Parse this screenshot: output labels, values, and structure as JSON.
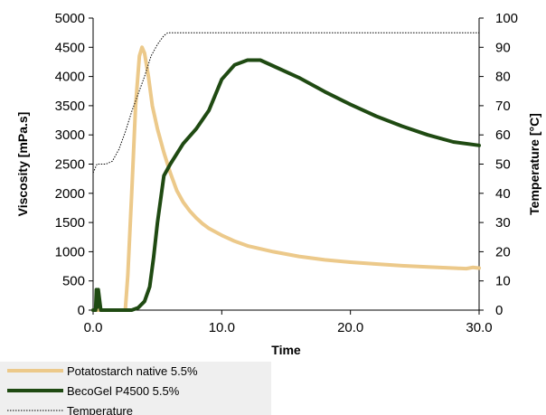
{
  "chart_data": {
    "type": "line",
    "title": "",
    "xlabel": "Time",
    "ylabel_left": "Viscosity [mPa.s]",
    "ylabel_right": "Temperature [°C]",
    "xlim": [
      0,
      30
    ],
    "ylim_left": [
      0,
      5000
    ],
    "ylim_right": [
      0,
      100
    ],
    "x_ticks": [
      "0.0",
      "10.0",
      "20.0",
      "30.0"
    ],
    "y_left_ticks": [
      "0",
      "500",
      "1000",
      "1500",
      "2000",
      "2500",
      "3000",
      "3500",
      "4000",
      "4500",
      "5000"
    ],
    "y_right_ticks": [
      "0",
      "10",
      "20",
      "30",
      "40",
      "50",
      "60",
      "70",
      "80",
      "90",
      "100"
    ],
    "grid": false,
    "legend_position": "bottom-left",
    "series": [
      {
        "name": "Potatostarch native  5.5%",
        "axis": "left",
        "color": "#ecc98a",
        "style": "solid",
        "x": [
          0,
          2.5,
          2.7,
          3.0,
          3.3,
          3.6,
          3.8,
          4.0,
          4.3,
          4.6,
          5.0,
          5.5,
          6.0,
          6.5,
          7.0,
          7.5,
          8.0,
          8.5,
          9.0,
          10.0,
          11.0,
          12.0,
          13.0,
          14.0,
          16.0,
          18.0,
          20.0,
          22.0,
          24.0,
          26.0,
          28.0,
          29.0,
          29.5,
          30.0
        ],
        "y": [
          0,
          0,
          600,
          2000,
          3500,
          4350,
          4500,
          4400,
          4000,
          3500,
          3100,
          2700,
          2350,
          2050,
          1850,
          1700,
          1580,
          1480,
          1400,
          1280,
          1180,
          1100,
          1050,
          1000,
          920,
          860,
          820,
          790,
          760,
          740,
          720,
          710,
          730,
          720
        ]
      },
      {
        "name": "BecoGel P4500 5.5%",
        "axis": "left",
        "color": "#1f4a12",
        "style": "solid",
        "x": [
          0,
          0.2,
          0.25,
          0.3,
          0.4,
          0.6,
          3.0,
          3.5,
          4.0,
          4.4,
          4.7,
          5.0,
          5.5,
          6.0,
          7.0,
          8.0,
          9.0,
          10.0,
          11.0,
          12.0,
          13.0,
          14.0,
          16.0,
          18.0,
          20.0,
          22.0,
          24.0,
          26.0,
          28.0,
          30.0
        ],
        "y": [
          0,
          0,
          350,
          50,
          350,
          0,
          0,
          40,
          150,
          400,
          900,
          1500,
          2300,
          2500,
          2850,
          3100,
          3420,
          3950,
          4200,
          4280,
          4280,
          4180,
          3980,
          3740,
          3520,
          3320,
          3150,
          3000,
          2880,
          2820
        ]
      },
      {
        "name": "Temperature",
        "axis": "right",
        "color": "#000000",
        "style": "dotted",
        "x": [
          0,
          0.3,
          0.5,
          1.0,
          1.5,
          2.0,
          2.5,
          3.0,
          3.5,
          4.0,
          4.5,
          5.0,
          5.5,
          5.8,
          6.5,
          30
        ],
        "y": [
          47,
          50,
          50,
          50,
          51,
          55,
          61,
          68,
          74,
          80,
          87,
          91,
          94,
          95,
          95,
          95
        ]
      }
    ]
  }
}
